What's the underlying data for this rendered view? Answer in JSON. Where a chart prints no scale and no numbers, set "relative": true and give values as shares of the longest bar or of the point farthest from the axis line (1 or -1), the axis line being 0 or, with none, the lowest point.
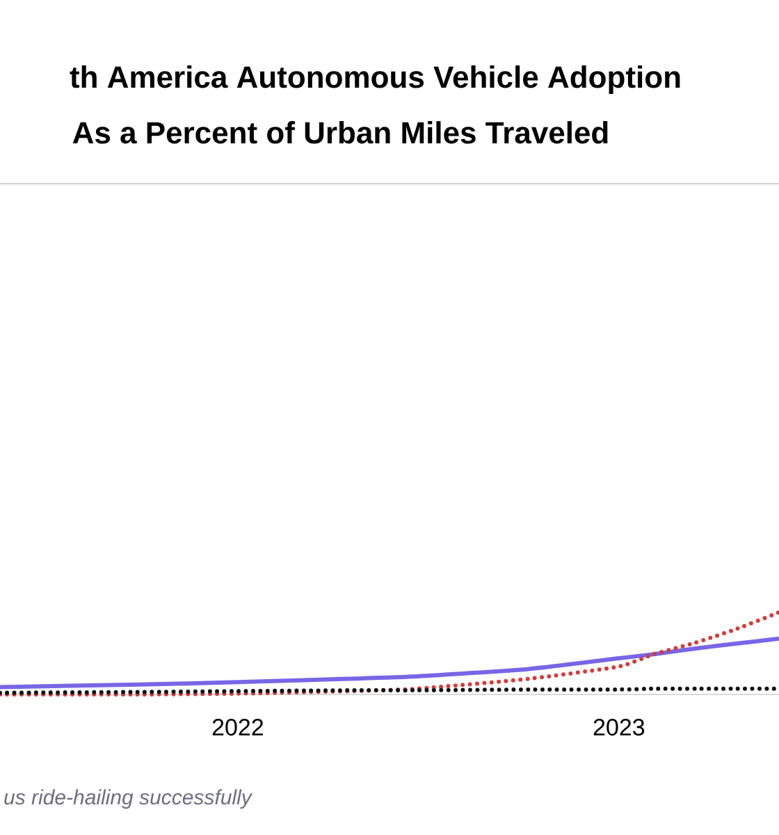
{
  "chart_data": {
    "type": "line",
    "title": "th America Autonomous Vehicle Adoption",
    "subtitle": "As a Percent of Urban Miles Traveled",
    "relative": true,
    "xlim": [
      2021.376,
      2023.42
    ],
    "xticks": [
      2022,
      2023
    ],
    "annotations": [
      "us ride-hailing successfully"
    ],
    "series": [
      {
        "color": "#7766e6",
        "line_style": "solid",
        "x": [
          2021.376,
          2021.741,
          2022,
          2022.288,
          2022.471,
          2022.763,
          2023,
          2023.091,
          2023.201,
          2023.31,
          2023.42
        ],
        "values": [
          0.09,
          0.12,
          0.15,
          0.19,
          0.22,
          0.31,
          0.44,
          0.49,
          0.56,
          0.62,
          0.68
        ]
      },
      {
        "color": "#d43c3c",
        "line_style": "dotted",
        "x": [
          2021.376,
          2021.741,
          2022,
          2022.288,
          2022.471,
          2022.763,
          2023,
          2023.091,
          2023.201,
          2023.31,
          2023.42
        ],
        "values": [
          0.0,
          0.0,
          0.01,
          0.04,
          0.07,
          0.19,
          0.34,
          0.49,
          0.63,
          0.8,
          1.0
        ]
      },
      {
        "color": "#111111",
        "line_style": "dotted",
        "x": [
          2021.376,
          2021.741,
          2022,
          2022.288,
          2022.471,
          2022.763,
          2023,
          2023.091,
          2023.201,
          2023.31,
          2023.42
        ],
        "values": [
          0.02,
          0.03,
          0.04,
          0.05,
          0.05,
          0.06,
          0.06,
          0.07,
          0.07,
          0.07,
          0.07
        ]
      }
    ]
  }
}
